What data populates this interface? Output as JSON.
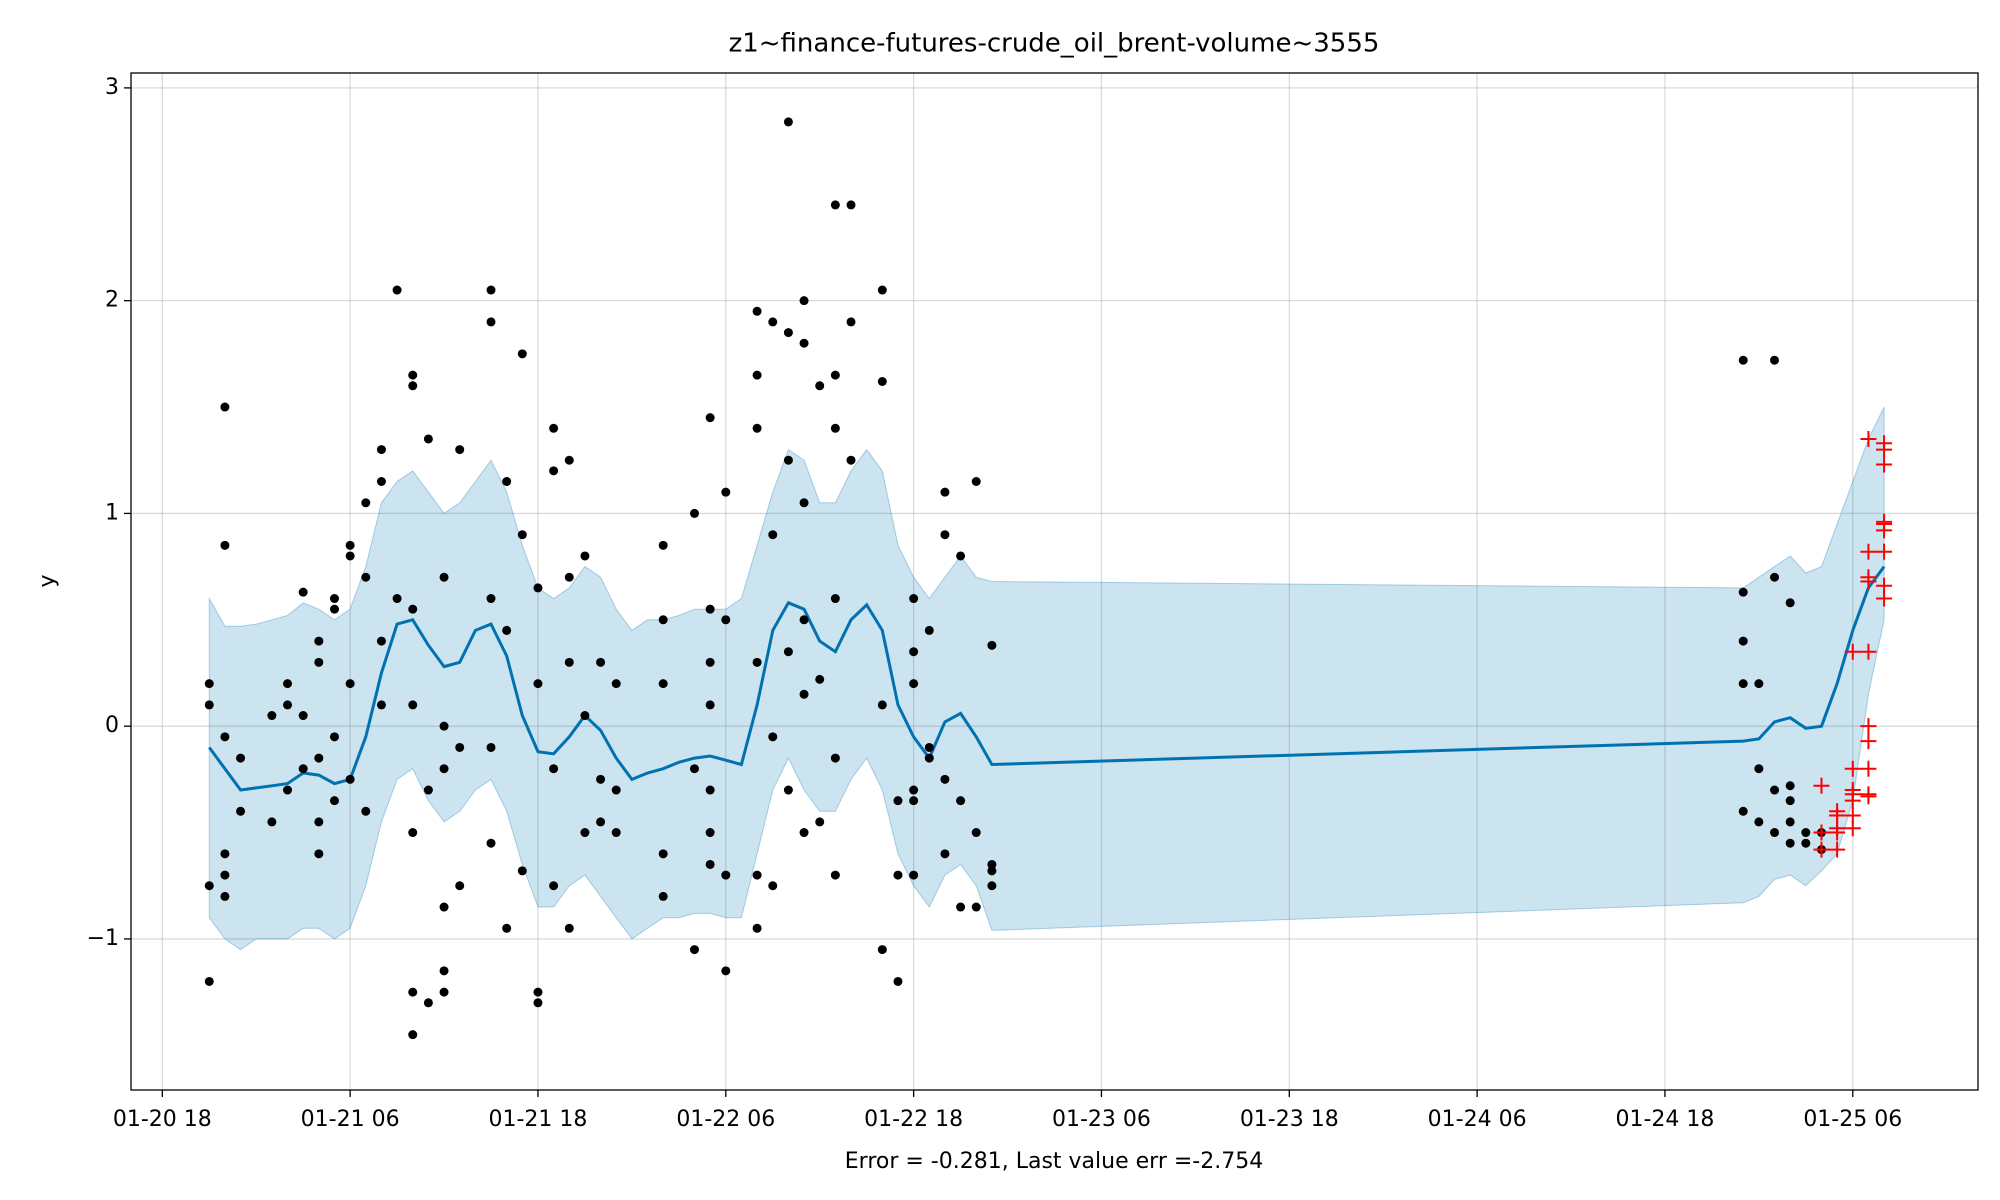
{
  "chart_data": {
    "type": "forecast",
    "title": "z1~finance-futures-crude_oil_brent-volume~3555",
    "xlabel": "Error = -0.281, Last value err =-2.754",
    "ylabel": "y",
    "xlim": [
      "01-20 16",
      "01-25 14"
    ],
    "ylim": [
      -1.71,
      3.07
    ],
    "xticks": [
      "01-20 18",
      "01-21 06",
      "01-21 18",
      "01-22 06",
      "01-22 18",
      "01-23 06",
      "01-23 18",
      "01-24 06",
      "01-24 18",
      "01-25 06"
    ],
    "yticks": [
      {
        "value": -1,
        "label": "−1"
      },
      0,
      1,
      2,
      3
    ],
    "grid": true,
    "x": [
      "01-20 21",
      "01-20 22",
      "01-20 23",
      "01-21 00",
      "01-21 01",
      "01-21 02",
      "01-21 03",
      "01-21 04",
      "01-21 05",
      "01-21 06",
      "01-21 07",
      "01-21 08",
      "01-21 09",
      "01-21 10",
      "01-21 11",
      "01-21 12",
      "01-21 13",
      "01-21 14",
      "01-21 15",
      "01-21 16",
      "01-21 17",
      "01-21 18",
      "01-21 19",
      "01-21 20",
      "01-21 21",
      "01-21 22",
      "01-21 23",
      "01-22 00",
      "01-22 01",
      "01-22 02",
      "01-22 03",
      "01-22 04",
      "01-22 05",
      "01-22 06",
      "01-22 07",
      "01-22 08",
      "01-22 09",
      "01-22 10",
      "01-22 11",
      "01-22 12",
      "01-22 13",
      "01-22 14",
      "01-22 15",
      "01-22 16",
      "01-22 17",
      "01-22 18",
      "01-22 19",
      "01-22 20",
      "01-22 21",
      "01-22 22",
      "01-22 23",
      "01-24 23",
      "01-25 00",
      "01-25 01",
      "01-25 02",
      "01-25 03",
      "01-25 04",
      "01-25 05",
      "01-25 06",
      "01-25 07",
      "01-25 08"
    ],
    "forecast": {
      "color": "#0072b2",
      "values": [
        -0.1,
        -0.2,
        -0.3,
        -0.29,
        -0.28,
        -0.27,
        -0.22,
        -0.23,
        -0.27,
        -0.25,
        -0.05,
        0.25,
        0.48,
        0.5,
        0.38,
        0.28,
        0.3,
        0.45,
        0.48,
        0.33,
        0.05,
        -0.12,
        -0.13,
        -0.05,
        0.05,
        -0.02,
        -0.15,
        -0.25,
        -0.22,
        -0.2,
        -0.17,
        -0.15,
        -0.14,
        -0.16,
        -0.18,
        0.1,
        0.45,
        0.58,
        0.55,
        0.4,
        0.35,
        0.5,
        0.57,
        0.45,
        0.1,
        -0.05,
        -0.15,
        0.02,
        0.06,
        -0.05,
        -0.18,
        -0.07,
        -0.06,
        0.02,
        0.04,
        -0.01,
        0.0,
        0.2,
        0.45,
        0.65,
        0.75
      ]
    },
    "band": {
      "color": "#0072b2",
      "opacity": 0.2,
      "upper": [
        0.6,
        0.47,
        0.47,
        0.48,
        0.5,
        0.52,
        0.58,
        0.55,
        0.5,
        0.55,
        0.75,
        1.05,
        1.15,
        1.2,
        1.1,
        1.0,
        1.05,
        1.15,
        1.25,
        1.1,
        0.85,
        0.65,
        0.6,
        0.65,
        0.75,
        0.7,
        0.55,
        0.45,
        0.5,
        0.5,
        0.52,
        0.55,
        0.55,
        0.55,
        0.6,
        0.85,
        1.1,
        1.3,
        1.25,
        1.05,
        1.05,
        1.2,
        1.3,
        1.2,
        0.85,
        0.7,
        0.6,
        0.7,
        0.8,
        0.7,
        0.68,
        0.65,
        0.7,
        0.75,
        0.8,
        0.72,
        0.75,
        0.95,
        1.15,
        1.35,
        1.5
      ],
      "lower": [
        -0.9,
        -1.0,
        -1.05,
        -1.0,
        -1.0,
        -1.0,
        -0.95,
        -0.95,
        -1.0,
        -0.95,
        -0.75,
        -0.45,
        -0.25,
        -0.2,
        -0.35,
        -0.45,
        -0.4,
        -0.3,
        -0.25,
        -0.4,
        -0.65,
        -0.85,
        -0.85,
        -0.75,
        -0.7,
        -0.8,
        -0.9,
        -1.0,
        -0.95,
        -0.9,
        -0.9,
        -0.88,
        -0.88,
        -0.9,
        -0.9,
        -0.6,
        -0.3,
        -0.15,
        -0.3,
        -0.4,
        -0.4,
        -0.25,
        -0.15,
        -0.3,
        -0.6,
        -0.75,
        -0.85,
        -0.7,
        -0.65,
        -0.75,
        -0.96,
        -0.83,
        -0.8,
        -0.72,
        -0.7,
        -0.75,
        -0.68,
        -0.6,
        -0.35,
        0.15,
        0.5
      ]
    },
    "observed": {
      "color": "#000000",
      "marker": "o",
      "x": [
        "01-20 21",
        "01-20 21",
        "01-20 21",
        "01-20 21",
        "01-20 22",
        "01-20 22",
        "01-20 22",
        "01-20 22",
        "01-20 22",
        "01-20 22",
        "01-20 23",
        "01-20 23",
        "01-21 01",
        "01-21 01",
        "01-21 02",
        "01-21 02",
        "01-21 02",
        "01-21 03",
        "01-21 03",
        "01-21 03",
        "01-21 04",
        "01-21 04",
        "01-21 04",
        "01-21 04",
        "01-21 04",
        "01-21 05",
        "01-21 05",
        "01-21 05",
        "01-21 05",
        "01-21 06",
        "01-21 06",
        "01-21 06",
        "01-21 06",
        "01-21 07",
        "01-21 07",
        "01-21 07",
        "01-21 08",
        "01-21 08",
        "01-21 08",
        "01-21 08",
        "01-21 09",
        "01-21 09",
        "01-21 10",
        "01-21 10",
        "01-21 10",
        "01-21 10",
        "01-21 10",
        "01-21 10",
        "01-21 10",
        "01-21 11",
        "01-21 11",
        "01-21 11",
        "01-21 12",
        "01-21 12",
        "01-21 12",
        "01-21 12",
        "01-21 12",
        "01-21 12",
        "01-21 13",
        "01-21 13",
        "01-21 13",
        "01-21 15",
        "01-21 15",
        "01-21 15",
        "01-21 15",
        "01-21 15",
        "01-21 16",
        "01-21 16",
        "01-21 16",
        "01-21 17",
        "01-21 17",
        "01-21 17",
        "01-21 18",
        "01-21 18",
        "01-21 18",
        "01-21 18",
        "01-21 19",
        "01-21 19",
        "01-21 19",
        "01-21 19",
        "01-21 20",
        "01-21 20",
        "01-21 20",
        "01-21 20",
        "01-21 21",
        "01-21 21",
        "01-21 21",
        "01-21 22",
        "01-21 22",
        "01-21 22",
        "01-21 23",
        "01-21 23",
        "01-21 23",
        "01-22 02",
        "01-22 02",
        "01-22 02",
        "01-22 02",
        "01-22 02",
        "01-22 04",
        "01-22 04",
        "01-22 04",
        "01-22 05",
        "01-22 05",
        "01-22 05",
        "01-22 05",
        "01-22 05",
        "01-22 05",
        "01-22 05",
        "01-22 06",
        "01-22 06",
        "01-22 06",
        "01-22 06",
        "01-22 08",
        "01-22 08",
        "01-22 08",
        "01-22 08",
        "01-22 08",
        "01-22 08",
        "01-22 09",
        "01-22 09",
        "01-22 09",
        "01-22 09",
        "01-22 10",
        "01-22 10",
        "01-22 10",
        "01-22 10",
        "01-22 10",
        "01-22 11",
        "01-22 11",
        "01-22 11",
        "01-22 11",
        "01-22 11",
        "01-22 11",
        "01-22 12",
        "01-22 12",
        "01-22 12",
        "01-22 13",
        "01-22 13",
        "01-22 13",
        "01-22 13",
        "01-22 13",
        "01-22 13",
        "01-22 14",
        "01-22 14",
        "01-22 14",
        "01-22 16",
        "01-22 16",
        "01-22 16",
        "01-22 16",
        "01-22 17",
        "01-22 17",
        "01-22 17",
        "01-22 18",
        "01-22 18",
        "01-22 18",
        "01-22 18",
        "01-22 18",
        "01-22 18",
        "01-22 19",
        "01-22 19",
        "01-22 19",
        "01-22 20",
        "01-22 20",
        "01-22 20",
        "01-22 20",
        "01-22 21",
        "01-22 21",
        "01-22 21",
        "01-22 22",
        "01-22 22",
        "01-22 22",
        "01-22 23",
        "01-22 23",
        "01-22 23",
        "01-22 23",
        "01-24 23",
        "01-24 23",
        "01-24 23",
        "01-24 23",
        "01-24 23",
        "01-25 00",
        "01-25 00",
        "01-25 00",
        "01-25 01",
        "01-25 01",
        "01-25 01",
        "01-25 01",
        "01-25 02",
        "01-25 02",
        "01-25 02",
        "01-25 02",
        "01-25 02",
        "01-25 03",
        "01-25 03",
        "01-25 04",
        "01-25 04"
      ],
      "values": [
        -0.75,
        -1.2,
        0.2,
        0.1,
        1.5,
        0.85,
        -0.8,
        -0.6,
        -0.7,
        -0.05,
        -0.4,
        -0.15,
        0.05,
        -0.45,
        0.1,
        0.2,
        -0.3,
        0.63,
        -0.2,
        0.05,
        -0.15,
        -0.45,
        0.4,
        0.3,
        -0.6,
        0.6,
        -0.05,
        0.55,
        -0.35,
        0.85,
        0.8,
        0.2,
        -0.25,
        1.05,
        0.7,
        -0.4,
        1.3,
        1.15,
        0.1,
        0.4,
        2.05,
        0.6,
        1.6,
        0.1,
        -0.5,
        -1.25,
        1.65,
        0.55,
        -1.45,
        1.35,
        -0.3,
        -1.3,
        0.0,
        -0.85,
        -1.15,
        0.7,
        -0.2,
        -1.25,
        1.3,
        -0.1,
        -0.75,
        2.05,
        1.9,
        0.6,
        -0.55,
        -0.1,
        1.15,
        0.45,
        -0.95,
        1.75,
        0.9,
        -0.68,
        0.65,
        0.2,
        -1.25,
        -1.3,
        1.4,
        1.2,
        -0.2,
        -0.75,
        1.25,
        0.7,
        0.3,
        -0.95,
        0.8,
        0.05,
        -0.5,
        0.3,
        -0.25,
        -0.45,
        0.2,
        -0.3,
        -0.5,
        0.5,
        -0.6,
        -0.8,
        0.85,
        0.2,
        1.0,
        -0.2,
        -1.05,
        1.45,
        0.1,
        -0.5,
        -0.65,
        0.55,
        0.3,
        -0.3,
        1.1,
        0.5,
        -0.7,
        -1.15,
        1.95,
        1.65,
        -0.7,
        1.4,
        0.3,
        -0.95,
        1.9,
        0.9,
        -0.05,
        -0.75,
        1.85,
        1.25,
        0.35,
        -0.3,
        2.84,
        1.8,
        1.05,
        0.5,
        -0.5,
        2.0,
        0.15,
        1.6,
        0.22,
        -0.45,
        1.65,
        -0.15,
        1.4,
        0.6,
        -0.7,
        2.45,
        2.45,
        1.9,
        1.25,
        2.05,
        1.62,
        0.1,
        -1.05,
        -0.35,
        -1.2,
        -0.7,
        0.2,
        -0.35,
        -0.7,
        0.6,
        0.35,
        -0.3,
        0.45,
        -0.1,
        -0.15,
        1.1,
        0.9,
        -0.25,
        -0.6,
        0.8,
        -0.35,
        -0.85,
        1.15,
        -0.5,
        -0.85,
        0.38,
        -0.65,
        -0.68,
        -0.75,
        1.72,
        0.63,
        0.4,
        0.2,
        -0.4,
        0.2,
        -0.2,
        -0.45,
        1.72,
        0.7,
        -0.3,
        -0.5,
        -0.35,
        -0.55,
        0.58,
        -0.28,
        -0.45,
        -0.5,
        -0.55,
        -0.5,
        -0.58
      ]
    },
    "future": {
      "color": "#ff0000",
      "marker": "+",
      "x": [
        "01-25 04",
        "01-25 04",
        "01-25 04",
        "01-25 05",
        "01-25 05",
        "01-25 05",
        "01-25 05",
        "01-25 05",
        "01-25 06",
        "01-25 06",
        "01-25 06",
        "01-25 06",
        "01-25 06",
        "01-25 06",
        "01-25 06",
        "01-25 07",
        "01-25 07",
        "01-25 07",
        "01-25 07",
        "01-25 07",
        "01-25 07",
        "01-25 07",
        "01-25 07",
        "01-25 07",
        "01-25 07",
        "01-25 08",
        "01-25 08",
        "01-25 08",
        "01-25 08",
        "01-25 08",
        "01-25 08",
        "01-25 08",
        "01-25 08",
        "01-25 08"
      ],
      "values": [
        -0.28,
        -0.5,
        -0.58,
        -0.4,
        -0.48,
        -0.58,
        -0.42,
        -0.5,
        -0.2,
        -0.32,
        -0.48,
        0.35,
        -0.3,
        -0.35,
        -0.42,
        0.82,
        0.7,
        0.35,
        0.0,
        -0.32,
        -0.2,
        1.35,
        0.68,
        -0.33,
        -0.07,
        1.3,
        0.95,
        0.82,
        0.66,
        0.92,
        1.33,
        1.23,
        0.96,
        0.6
      ]
    }
  }
}
